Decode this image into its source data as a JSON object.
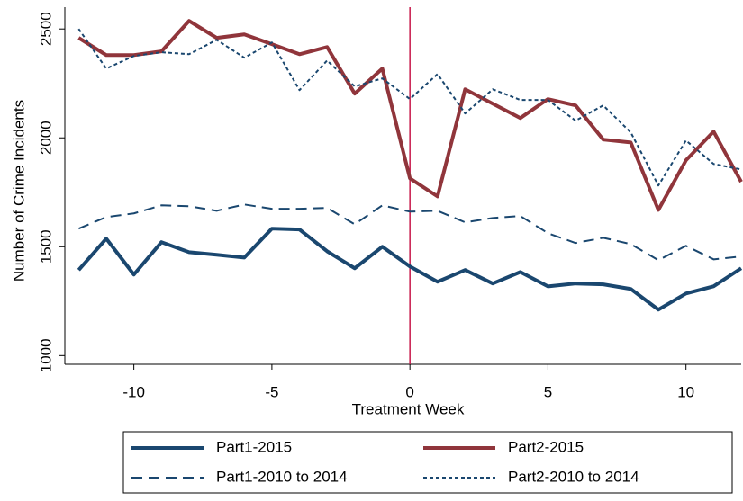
{
  "chart_data": {
    "type": "line",
    "xlabel": "Treatment Week",
    "ylabel": "Number of Crime Incidents",
    "x": [
      -12,
      -11,
      -10,
      -9,
      -8,
      -7,
      -6,
      -5,
      -4,
      -3,
      -2,
      -1,
      0,
      1,
      2,
      3,
      4,
      5,
      6,
      7,
      8,
      9,
      10,
      11,
      12
    ],
    "xlim": [
      -12.5,
      12
    ],
    "xticks": [
      -10,
      -5,
      0,
      5,
      10
    ],
    "ylim": [
      960,
      2600
    ],
    "yticks": [
      1000,
      1500,
      2000,
      2500
    ],
    "vline": {
      "x": 0,
      "color": "#c8184a"
    },
    "legend": "bottom",
    "series": [
      {
        "name": "Part1-2015",
        "color": "#1a476f",
        "dash": "solid",
        "values": [
          1393,
          1537,
          1372,
          1521,
          1475,
          1463,
          1450,
          1583,
          1579,
          1479,
          1401,
          1500,
          1409,
          1339,
          1393,
          1331,
          1384,
          1318,
          1331,
          1327,
          1306,
          1211,
          1285,
          1318,
          1401
        ]
      },
      {
        "name": "Part2-2015",
        "color": "#90353b",
        "dash": "solid",
        "values": [
          2459,
          2380,
          2380,
          2397,
          2537,
          2459,
          2475,
          2430,
          2384,
          2417,
          2203,
          2318,
          1814,
          1731,
          2223,
          2157,
          2091,
          2178,
          2149,
          1992,
          1979,
          1669,
          1897,
          2029,
          1798
        ]
      },
      {
        "name": "Part1-2010 to 2014",
        "color": "#1a476f",
        "dash": "dash",
        "values": [
          1583,
          1636,
          1653,
          1690,
          1686,
          1665,
          1694,
          1674,
          1674,
          1678,
          1603,
          1690,
          1661,
          1665,
          1612,
          1632,
          1641,
          1562,
          1517,
          1541,
          1512,
          1438,
          1504,
          1442,
          1455
        ]
      },
      {
        "name": "Part2-2010 to 2014",
        "color": "#1a476f",
        "dash": "dot",
        "values": [
          2500,
          2318,
          2376,
          2393,
          2384,
          2450,
          2368,
          2438,
          2219,
          2355,
          2236,
          2273,
          2178,
          2293,
          2112,
          2223,
          2174,
          2174,
          2079,
          2149,
          2025,
          1781,
          1988,
          1880,
          1855
        ]
      }
    ]
  }
}
